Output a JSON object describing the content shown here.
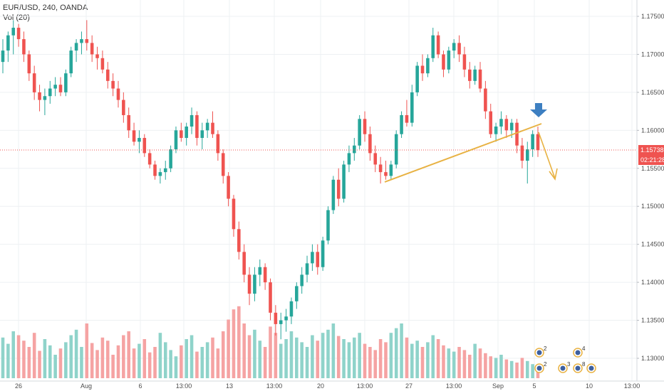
{
  "legend": {
    "title": "EUR/USD, 240, OANDA",
    "volume": "Vol (20)"
  },
  "price_tag": {
    "value": "1.15738",
    "countdown": "02:21:28"
  },
  "colors": {
    "up": "#26a69a",
    "down": "#ef5350",
    "vol_up": "#8fd3ca",
    "vol_down": "#f5a3a3",
    "trendline": "#e8b243",
    "arrow": "#3d7fc1",
    "price_line": "#ef5350",
    "grid": "#eef0f3"
  },
  "events": [
    "2",
    "4",
    "2",
    "3",
    "8"
  ],
  "chart_data": {
    "type": "candlestick",
    "title": "EUR/USD, 240, OANDA",
    "ylim": [
      1.1275,
      1.1775
    ],
    "y_ticks": [
      "1.17500",
      "1.17000",
      "1.16500",
      "1.16000",
      "1.15500",
      "1.15000",
      "1.14500",
      "1.14000",
      "1.13500",
      "1.13000"
    ],
    "x_ticks": [
      "26",
      "Aug",
      "6",
      "13:00",
      "13",
      "13:00",
      "20",
      "13:00",
      "27",
      "13:00",
      "Sep",
      "5",
      "10",
      "13:00"
    ],
    "last_price": 1.15738,
    "volume_indicator": "Vol (20)",
    "ohlc": [
      [
        1.169,
        1.172,
        1.1675,
        1.1705
      ],
      [
        1.1705,
        1.173,
        1.169,
        1.1725
      ],
      [
        1.1725,
        1.1745,
        1.17,
        1.1735
      ],
      [
        1.1735,
        1.174,
        1.171,
        1.172
      ],
      [
        1.172,
        1.173,
        1.169,
        1.17
      ],
      [
        1.17,
        1.1705,
        1.1665,
        1.1675
      ],
      [
        1.1675,
        1.1685,
        1.164,
        1.165
      ],
      [
        1.165,
        1.166,
        1.1625,
        1.164
      ],
      [
        1.164,
        1.1655,
        1.162,
        1.1645
      ],
      [
        1.1645,
        1.1665,
        1.1635,
        1.1655
      ],
      [
        1.1655,
        1.167,
        1.1645,
        1.166
      ],
      [
        1.166,
        1.167,
        1.1645,
        1.165
      ],
      [
        1.165,
        1.168,
        1.1645,
        1.1675
      ],
      [
        1.1675,
        1.171,
        1.167,
        1.1705
      ],
      [
        1.1705,
        1.172,
        1.169,
        1.1715
      ],
      [
        1.1715,
        1.173,
        1.17,
        1.172
      ],
      [
        1.172,
        1.1745,
        1.1705,
        1.1715
      ],
      [
        1.1715,
        1.1725,
        1.169,
        1.17
      ],
      [
        1.17,
        1.171,
        1.168,
        1.1695
      ],
      [
        1.1695,
        1.1705,
        1.1675,
        1.168
      ],
      [
        1.168,
        1.169,
        1.1655,
        1.1665
      ],
      [
        1.1665,
        1.1675,
        1.1645,
        1.1655
      ],
      [
        1.1655,
        1.1665,
        1.163,
        1.164
      ],
      [
        1.164,
        1.165,
        1.161,
        1.162
      ],
      [
        1.162,
        1.163,
        1.159,
        1.16
      ],
      [
        1.16,
        1.161,
        1.158,
        1.1585
      ],
      [
        1.1585,
        1.16,
        1.157,
        1.159
      ],
      [
        1.159,
        1.1595,
        1.1565,
        1.157
      ],
      [
        1.157,
        1.1575,
        1.155,
        1.1555
      ],
      [
        1.1555,
        1.156,
        1.1535,
        1.154
      ],
      [
        1.154,
        1.155,
        1.153,
        1.1545
      ],
      [
        1.1545,
        1.156,
        1.1535,
        1.155
      ],
      [
        1.155,
        1.158,
        1.1545,
        1.1575
      ],
      [
        1.1575,
        1.1605,
        1.157,
        1.16
      ],
      [
        1.16,
        1.161,
        1.1585,
        1.159
      ],
      [
        1.159,
        1.161,
        1.158,
        1.1605
      ],
      [
        1.1605,
        1.163,
        1.1595,
        1.162
      ],
      [
        1.162,
        1.1625,
        1.158,
        1.159
      ],
      [
        1.159,
        1.161,
        1.1575,
        1.16
      ],
      [
        1.16,
        1.1615,
        1.159,
        1.161
      ],
      [
        1.161,
        1.1625,
        1.159,
        1.1595
      ],
      [
        1.1595,
        1.16,
        1.156,
        1.157
      ],
      [
        1.157,
        1.1575,
        1.153,
        1.154
      ],
      [
        1.154,
        1.1545,
        1.15,
        1.151
      ],
      [
        1.151,
        1.1515,
        1.146,
        1.147
      ],
      [
        1.147,
        1.148,
        1.143,
        1.144
      ],
      [
        1.144,
        1.145,
        1.14,
        1.141
      ],
      [
        1.141,
        1.142,
        1.137,
        1.1385
      ],
      [
        1.1385,
        1.142,
        1.1375,
        1.141
      ],
      [
        1.141,
        1.143,
        1.1395,
        1.142
      ],
      [
        1.142,
        1.1425,
        1.139,
        1.14
      ],
      [
        1.14,
        1.1405,
        1.135,
        1.136
      ],
      [
        1.136,
        1.137,
        1.133,
        1.1345
      ],
      [
        1.1345,
        1.136,
        1.1325,
        1.135
      ],
      [
        1.135,
        1.1365,
        1.1335,
        1.1355
      ],
      [
        1.1355,
        1.138,
        1.1345,
        1.1375
      ],
      [
        1.1375,
        1.14,
        1.1365,
        1.1395
      ],
      [
        1.1395,
        1.142,
        1.1385,
        1.141
      ],
      [
        1.141,
        1.1435,
        1.14,
        1.1425
      ],
      [
        1.1425,
        1.145,
        1.1415,
        1.144
      ],
      [
        1.144,
        1.145,
        1.141,
        1.142
      ],
      [
        1.142,
        1.146,
        1.1415,
        1.1455
      ],
      [
        1.1455,
        1.15,
        1.145,
        1.1495
      ],
      [
        1.1495,
        1.154,
        1.149,
        1.1535
      ],
      [
        1.1535,
        1.155,
        1.15,
        1.151
      ],
      [
        1.151,
        1.156,
        1.1505,
        1.1555
      ],
      [
        1.1555,
        1.158,
        1.1545,
        1.157
      ],
      [
        1.157,
        1.159,
        1.156,
        1.158
      ],
      [
        1.158,
        1.162,
        1.1575,
        1.1615
      ],
      [
        1.1615,
        1.1625,
        1.1585,
        1.1595
      ],
      [
        1.1595,
        1.1605,
        1.156,
        1.157
      ],
      [
        1.157,
        1.158,
        1.1545,
        1.1555
      ],
      [
        1.1555,
        1.1565,
        1.153,
        1.1545
      ],
      [
        1.1545,
        1.156,
        1.1535,
        1.154
      ],
      [
        1.154,
        1.156,
        1.1535,
        1.1555
      ],
      [
        1.1555,
        1.16,
        1.155,
        1.1595
      ],
      [
        1.1595,
        1.1625,
        1.159,
        1.162
      ],
      [
        1.162,
        1.164,
        1.1605,
        1.161
      ],
      [
        1.161,
        1.166,
        1.1605,
        1.165
      ],
      [
        1.165,
        1.169,
        1.1645,
        1.1685
      ],
      [
        1.1685,
        1.17,
        1.1665,
        1.1675
      ],
      [
        1.1675,
        1.17,
        1.167,
        1.1695
      ],
      [
        1.1695,
        1.1735,
        1.169,
        1.1725
      ],
      [
        1.1725,
        1.173,
        1.1695,
        1.17
      ],
      [
        1.17,
        1.1705,
        1.167,
        1.168
      ],
      [
        1.168,
        1.171,
        1.1675,
        1.1705
      ],
      [
        1.1705,
        1.172,
        1.1695,
        1.1715
      ],
      [
        1.1715,
        1.1725,
        1.169,
        1.17
      ],
      [
        1.17,
        1.171,
        1.167,
        1.168
      ],
      [
        1.168,
        1.169,
        1.1655,
        1.1665
      ],
      [
        1.1665,
        1.1685,
        1.166,
        1.168
      ],
      [
        1.168,
        1.169,
        1.165,
        1.1655
      ],
      [
        1.1655,
        1.1665,
        1.1615,
        1.1625
      ],
      [
        1.1625,
        1.1635,
        1.159,
        1.1595
      ],
      [
        1.1595,
        1.161,
        1.1585,
        1.1605
      ],
      [
        1.1605,
        1.1625,
        1.1595,
        1.1615
      ],
      [
        1.1615,
        1.162,
        1.159,
        1.16
      ],
      [
        1.16,
        1.1615,
        1.159,
        1.161
      ],
      [
        1.161,
        1.1615,
        1.157,
        1.158
      ],
      [
        1.158,
        1.159,
        1.155,
        1.156
      ],
      [
        1.156,
        1.1585,
        1.153,
        1.1575
      ],
      [
        1.1575,
        1.16,
        1.1565,
        1.1595
      ],
      [
        1.1595,
        1.1605,
        1.1565,
        1.1574
      ]
    ],
    "volume": [
      0.52,
      0.44,
      0.6,
      0.55,
      0.48,
      0.4,
      0.58,
      0.35,
      0.5,
      0.42,
      0.3,
      0.38,
      0.46,
      0.55,
      0.62,
      0.4,
      0.7,
      0.45,
      0.36,
      0.52,
      0.48,
      0.3,
      0.42,
      0.55,
      0.6,
      0.38,
      0.44,
      0.5,
      0.33,
      0.4,
      0.58,
      0.46,
      0.36,
      0.28,
      0.42,
      0.5,
      0.55,
      0.34,
      0.4,
      0.46,
      0.52,
      0.38,
      0.6,
      0.75,
      0.88,
      0.92,
      0.7,
      0.55,
      0.62,
      0.48,
      0.4,
      0.66,
      0.58,
      0.44,
      0.5,
      0.6,
      0.52,
      0.46,
      0.4,
      0.55,
      0.48,
      0.58,
      0.62,
      0.7,
      0.54,
      0.5,
      0.46,
      0.52,
      0.58,
      0.44,
      0.4,
      0.36,
      0.5,
      0.46,
      0.58,
      0.64,
      0.7,
      0.52,
      0.44,
      0.48,
      0.4,
      0.46,
      0.55,
      0.5,
      0.42,
      0.38,
      0.34,
      0.4,
      0.36,
      0.3,
      0.44,
      0.38,
      0.32,
      0.28,
      0.26,
      0.3,
      0.24,
      0.22,
      0.2,
      0.26,
      0.22,
      0.18,
      0.14
    ]
  }
}
